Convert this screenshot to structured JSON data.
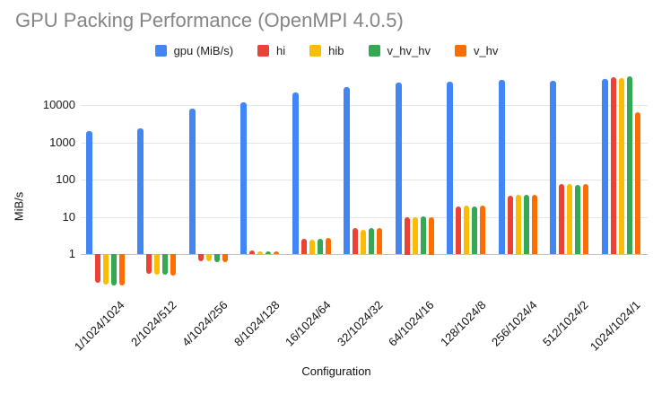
{
  "title": "GPU Packing Performance (OpenMPI 4.0.5)",
  "chart_data": {
    "type": "bar",
    "title": "GPU Packing Performance (OpenMPI 4.0.5)",
    "xlabel": "Configuration",
    "ylabel": "MiB/s",
    "y_scale": "log",
    "y_ticks": [
      1,
      10,
      100,
      1000,
      10000
    ],
    "y_range": [
      0.1,
      62000
    ],
    "baseline": 1,
    "grid": true,
    "legend_position": "top",
    "categories": [
      "1/1024/1024",
      "2/1024/512",
      "4/1024/256",
      "8/1024/128",
      "16/1024/64",
      "32/1024/32",
      "64/1024/16",
      "128/1024/8",
      "256/1024/4",
      "512/1024/2",
      "1024/1024/1"
    ],
    "series": [
      {
        "name": "gpu (MiB/s)",
        "color": "#4285F4",
        "values": [
          2000,
          2300,
          7800,
          12000,
          22000,
          31000,
          41000,
          42000,
          48000,
          45000,
          51000
        ]
      },
      {
        "name": "hi",
        "color": "#EA4335",
        "values": [
          0.17,
          0.3,
          0.65,
          1.25,
          2.6,
          5.0,
          10.0,
          19,
          37,
          75,
          56000
        ]
      },
      {
        "name": "hib",
        "color": "#FBBC04",
        "values": [
          0.15,
          0.28,
          0.63,
          1.2,
          2.4,
          4.4,
          9.9,
          20,
          38,
          75,
          53000
        ]
      },
      {
        "name": "v_hv_hv",
        "color": "#34A853",
        "values": [
          0.145,
          0.28,
          0.62,
          1.2,
          2.5,
          4.9,
          10.2,
          19,
          38,
          73,
          58000
        ]
      },
      {
        "name": "v_hv",
        "color": "#FF6D01",
        "values": [
          0.14,
          0.27,
          0.6,
          1.2,
          2.7,
          5.0,
          10.0,
          20,
          38,
          76,
          6500
        ]
      }
    ]
  }
}
